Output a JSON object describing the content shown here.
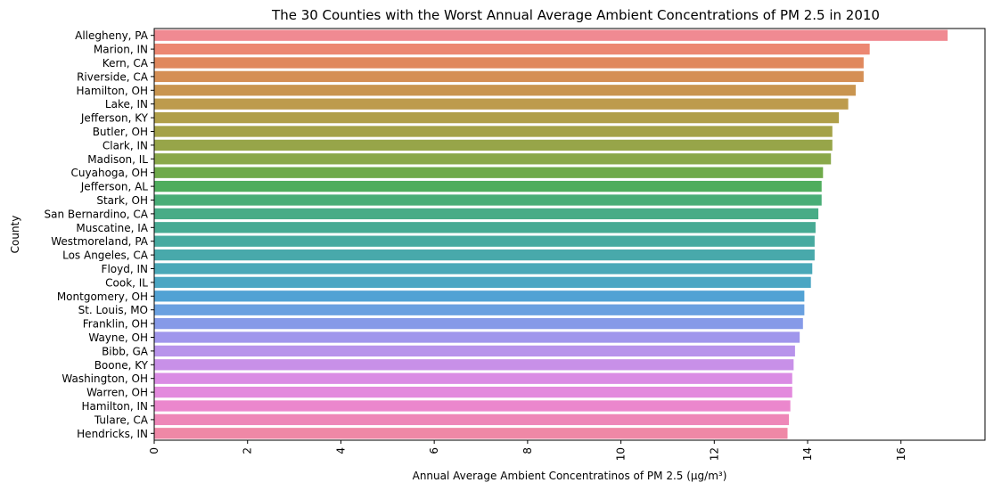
{
  "chart_data": {
    "type": "bar",
    "orientation": "horizontal",
    "title": "The 30 Counties with the Worst Annual Average Ambient Concentrations of PM 2.5 in 2010",
    "xlabel": "Annual Average Ambient Concentratinos of PM 2.5 (µg/m³)",
    "ylabel": "County",
    "xlim": [
      0,
      17.8
    ],
    "xticks": [
      "0",
      "2",
      "4",
      "6",
      "8",
      "10",
      "12",
      "14",
      "16"
    ],
    "grid": false,
    "categories": [
      "Allegheny, PA",
      "Marion, IN",
      "Kern, CA",
      "Riverside, CA",
      "Hamilton, OH",
      "Lake, IN",
      "Jefferson, KY",
      "Butler, OH",
      "Clark, IN",
      "Madison, IL",
      "Cuyahoga, OH",
      "Jefferson, AL",
      "Stark, OH",
      "San Bernardino, CA",
      "Muscatine, IA",
      "Westmoreland, PA",
      "Los Angeles, CA",
      "Floyd, IN",
      "Cook, IL",
      "Montgomery, OH",
      "St. Louis, MO",
      "Franklin, OH",
      "Wayne, OH",
      "Bibb, GA",
      "Boone, KY",
      "Washington, OH",
      "Warren, OH",
      "Hamilton, IN",
      "Tulare, CA",
      "Hendricks, IN"
    ],
    "values": [
      17.0,
      15.33,
      15.2,
      15.2,
      15.03,
      14.87,
      14.67,
      14.53,
      14.53,
      14.5,
      14.33,
      14.3,
      14.3,
      14.23,
      14.17,
      14.15,
      14.15,
      14.1,
      14.07,
      13.93,
      13.93,
      13.9,
      13.83,
      13.73,
      13.7,
      13.67,
      13.67,
      13.63,
      13.6,
      13.57
    ],
    "colors": [
      "#f08a92",
      "#ec8772",
      "#e0885d",
      "#d58f55",
      "#c99550",
      "#bd9b4d",
      "#b09f49",
      "#a4a248",
      "#97a549",
      "#8aa84a",
      "#6faa4a",
      "#4fad5d",
      "#48ad76",
      "#48ac86",
      "#47aa93",
      "#47aaa0",
      "#48a9ab",
      "#4aa8b8",
      "#4ba6c3",
      "#51a2d4",
      "#6aa0e0",
      "#869ae8",
      "#a096ec",
      "#b893eb",
      "#c890e8",
      "#da8ce4",
      "#e38add",
      "#eb87cd",
      "#ee87b8",
      "#ef88a6"
    ]
  }
}
